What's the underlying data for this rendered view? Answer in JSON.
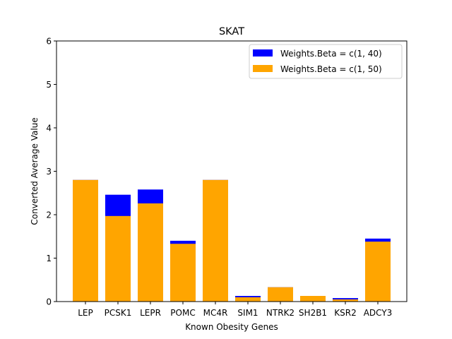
{
  "chart_data": {
    "type": "bar",
    "title": "SKAT",
    "xlabel": "Known Obesity Genes",
    "ylabel": "Converted Average Value",
    "ylim": [
      0,
      6
    ],
    "yticks": [
      "0",
      "1",
      "2",
      "3",
      "4",
      "5",
      "6"
    ],
    "grid": false,
    "legend_position": "top-right",
    "bar_mode": "overlaid",
    "categories": [
      "LEP",
      "PCSK1",
      "LEPR",
      "POMC",
      "MC4R",
      "SIM1",
      "NTRK2",
      "SH2B1",
      "KSR2",
      "ADCY3"
    ],
    "series": [
      {
        "name": "Weights.Beta = c(1, 40)",
        "color": "#0000ff",
        "values": [
          2.8,
          2.46,
          2.58,
          1.4,
          2.8,
          0.13,
          0.33,
          0.13,
          0.08,
          1.45
        ]
      },
      {
        "name": "Weights.Beta = c(1, 50)",
        "color": "#ffa500",
        "values": [
          2.8,
          1.97,
          2.26,
          1.33,
          2.8,
          0.1,
          0.33,
          0.13,
          0.05,
          1.38
        ]
      }
    ]
  }
}
